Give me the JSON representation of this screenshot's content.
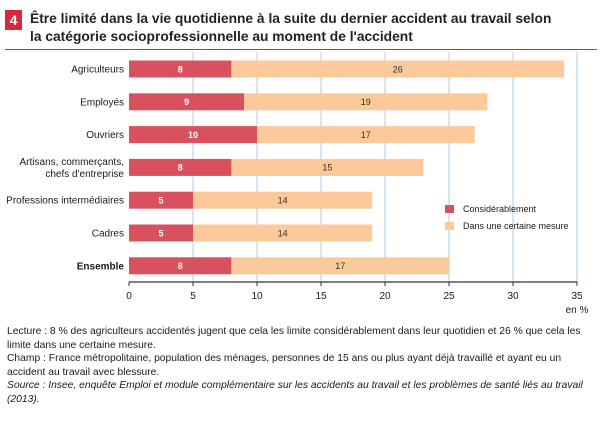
{
  "figure_number": "4",
  "title_line1": "Être limité dans la vie quotidienne à la suite du dernier accident au travail selon",
  "title_line2": "la catégorie socioprofessionnelle au moment de l'accident",
  "colors": {
    "accent": "#d9283b",
    "series1": "#d9505f",
    "series2": "#fcc99b",
    "grid": "#a9cbe8"
  },
  "chart_data": {
    "type": "bar",
    "orientation": "horizontal",
    "stacked": true,
    "categories": [
      [
        "Agriculteurs"
      ],
      [
        "Employés"
      ],
      [
        "Ouvriers"
      ],
      [
        "Artisans, commerçants,",
        "chefs d'entreprise"
      ],
      [
        "Professions intermédiaires"
      ],
      [
        "Cadres"
      ],
      [
        "Ensemble"
      ]
    ],
    "bold_categories": [
      "Ensemble"
    ],
    "series": [
      {
        "name": "Considérablement",
        "values": [
          8,
          9,
          10,
          8,
          5,
          5,
          8
        ],
        "color": "#d9505f"
      },
      {
        "name": "Dans une certaine mesure",
        "values": [
          26,
          19,
          17,
          15,
          14,
          14,
          17
        ],
        "color": "#fcc99b"
      }
    ],
    "xlim": [
      0,
      35
    ],
    "xticks": [
      0,
      5,
      10,
      15,
      20,
      25,
      30,
      35
    ],
    "xlabel": "en %",
    "grid": true,
    "legend_position": "right"
  },
  "notes": {
    "lecture": "Lecture : 8 % des agriculteurs accidentés jugent que cela les limite considérablement dans leur quotidien et 26 % que cela les limite dans une certaine mesure.",
    "champ": "Champ : France métropolitaine, population des ménages, personnes de 15 ans ou plus ayant déjà travaillé et ayant eu un accident au travail avec blessure.",
    "source": "Source : Insee, enquête Emploi et module complémentaire sur les accidents au travail et les problèmes de santé liés au travail (2013)."
  }
}
